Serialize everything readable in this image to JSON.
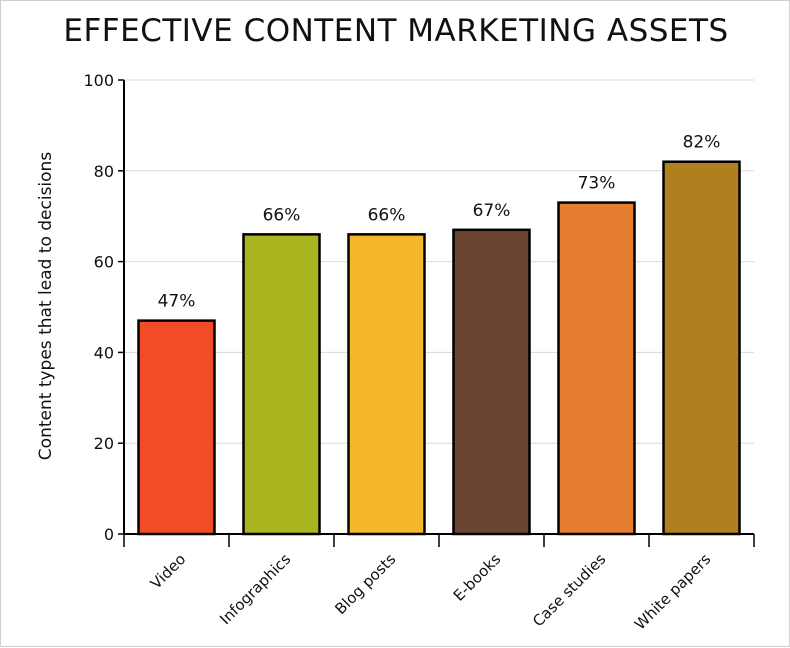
{
  "chart_data": {
    "type": "bar",
    "title": "EFFECTIVE CONTENT MARKETING ASSETS",
    "xlabel": "",
    "ylabel": "Content types that lead to decisions",
    "ylim": [
      0,
      100
    ],
    "yticks": [
      "0",
      "20",
      "40",
      "60",
      "80",
      "100"
    ],
    "grid": true,
    "categories": [
      "Video",
      "Infographics",
      "Blog posts",
      "E-books",
      "Case studies",
      "White papers"
    ],
    "values": [
      47,
      66,
      66,
      67,
      73,
      82
    ],
    "value_labels": [
      "47%",
      "66%",
      "66%",
      "67%",
      "73%",
      "82%"
    ],
    "colors": [
      "#f24c27",
      "#a9b51f",
      "#f5b82a",
      "#6b4532",
      "#e67e30",
      "#b07f1e"
    ]
  }
}
